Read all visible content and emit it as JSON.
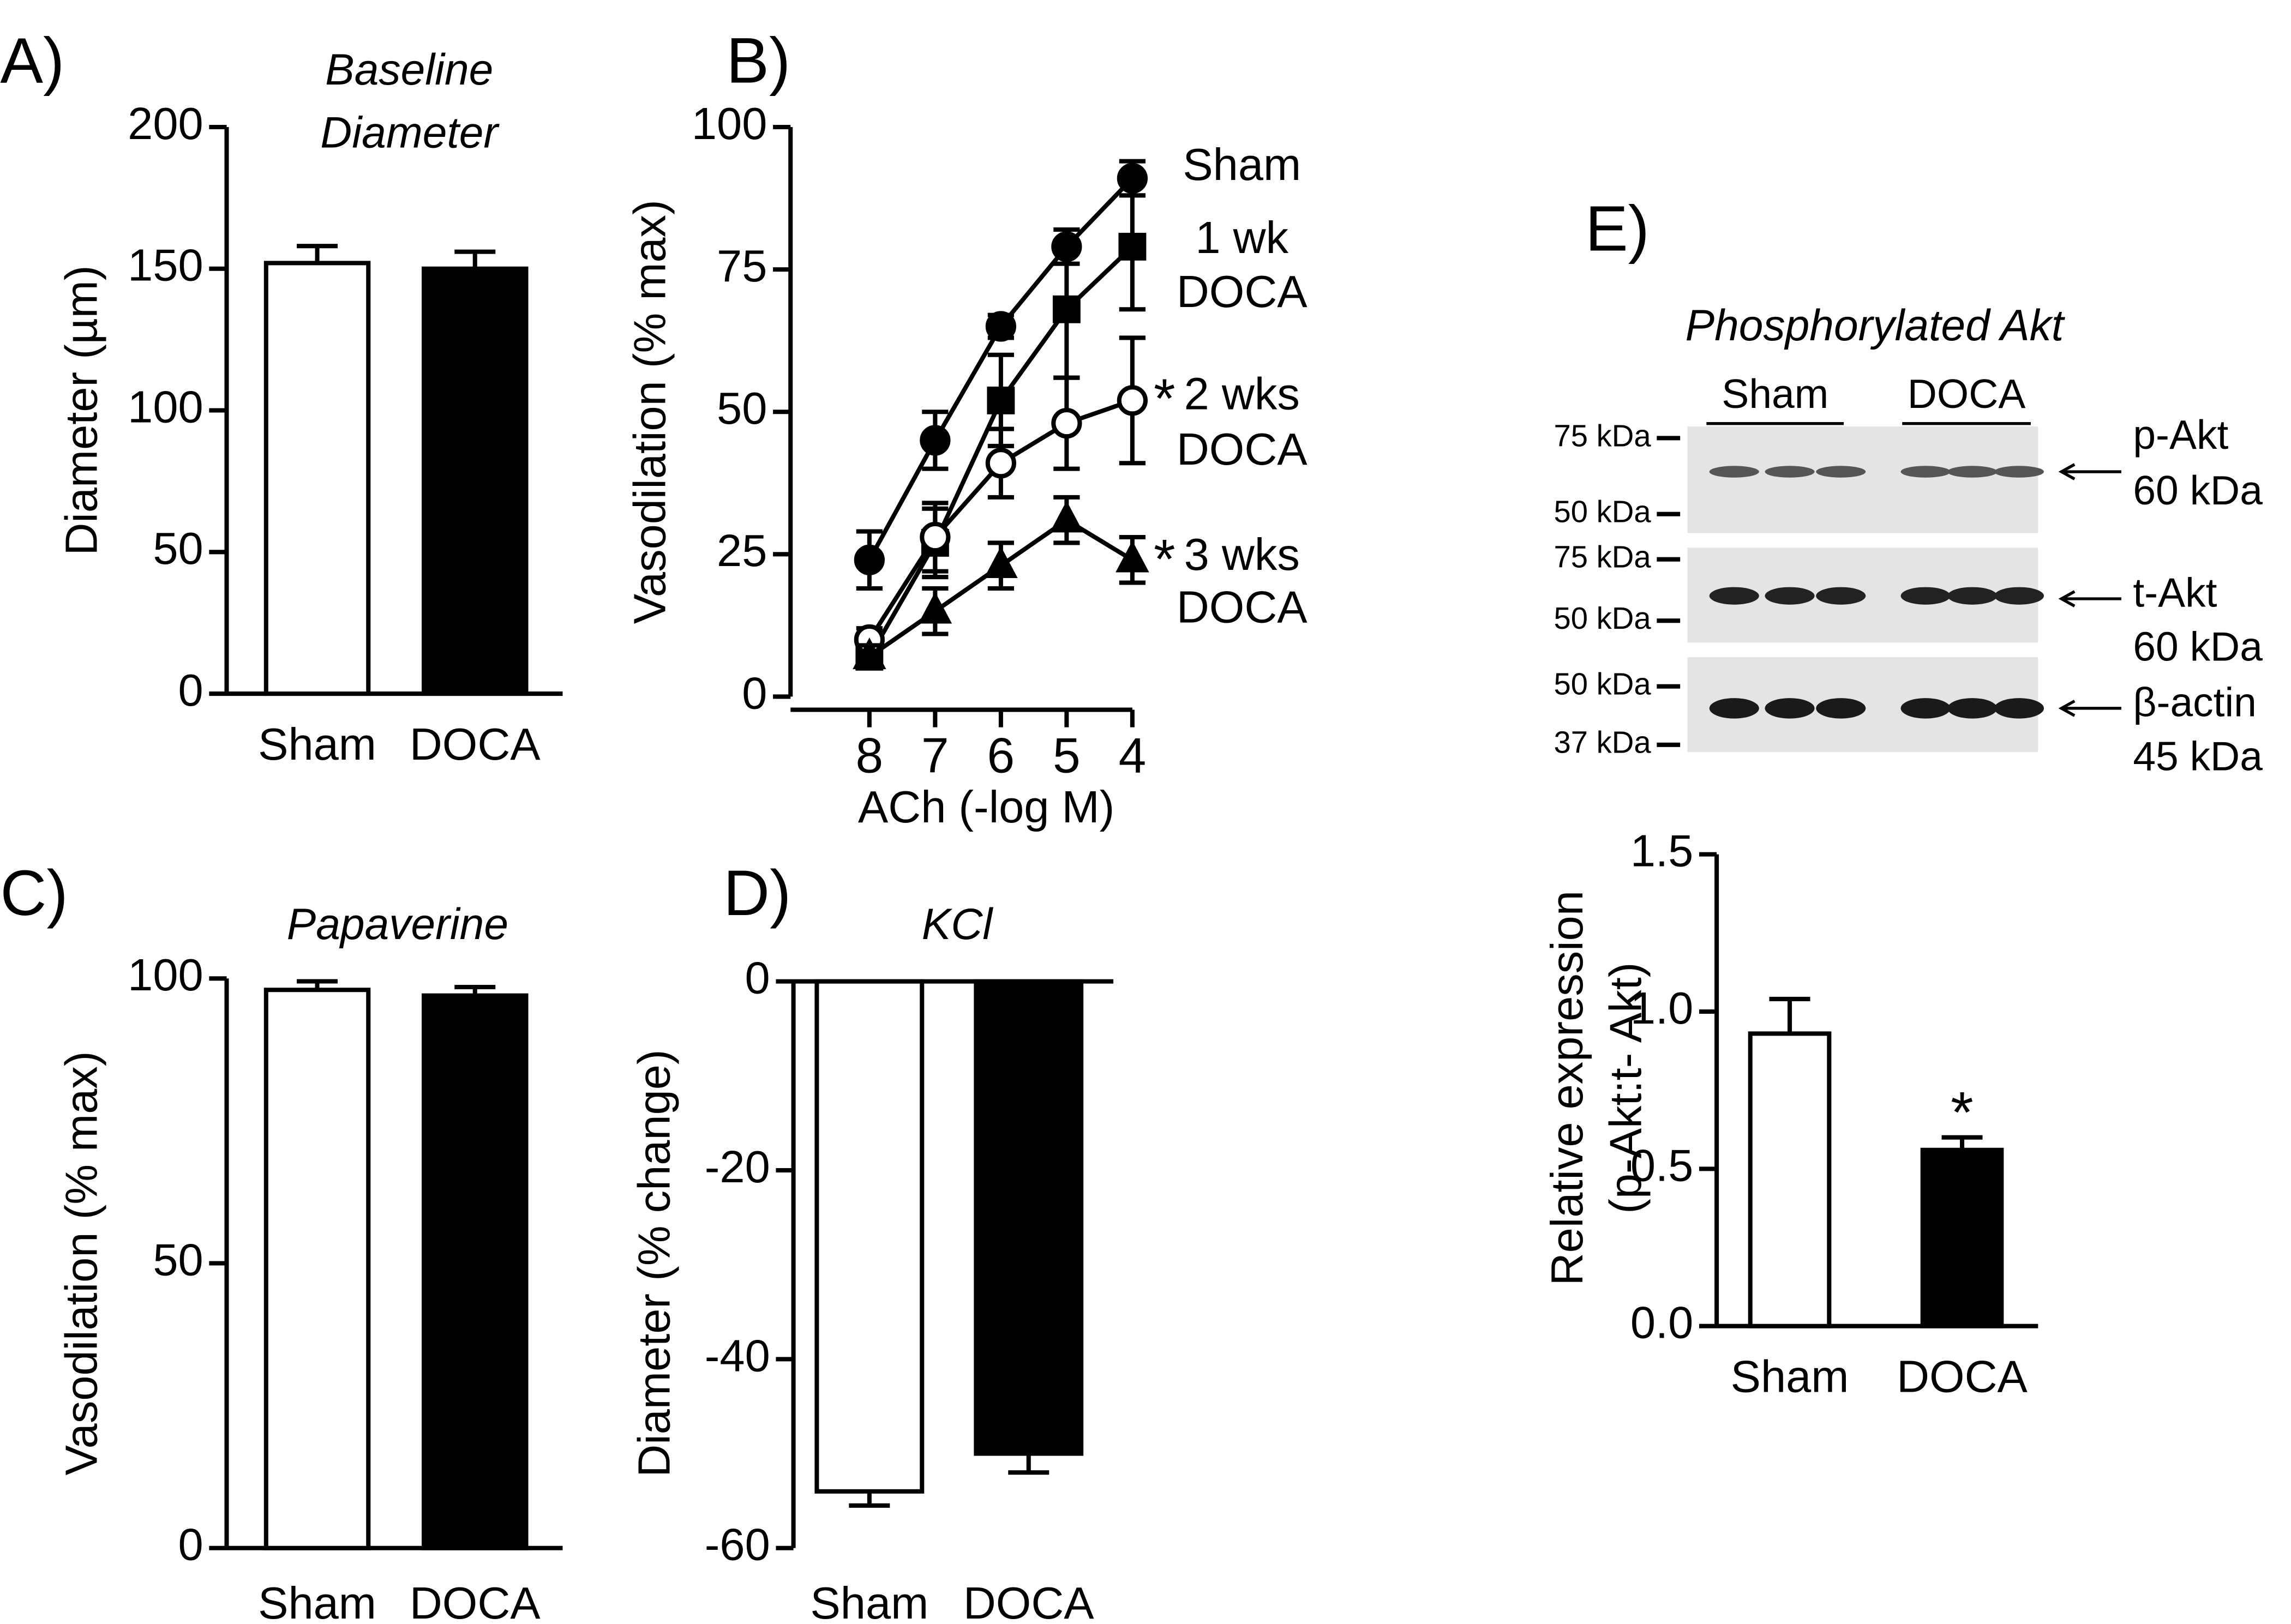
{
  "chart_data": [
    {
      "type": "bar",
      "panel": "A)",
      "title": [
        "Baseline",
        "Diameter"
      ],
      "ylabel": "Diameter (µm)",
      "categories": [
        "Sham",
        "DOCA"
      ],
      "values": [
        152,
        150
      ],
      "errors": [
        6,
        6
      ],
      "colors": [
        "#ffffff",
        "#000000"
      ],
      "ylim": [
        0,
        200
      ],
      "yticks": [
        0,
        50,
        100,
        150,
        200
      ]
    },
    {
      "type": "line",
      "panel": "B)",
      "ylabel": "Vasodilation (% max)",
      "xlabel": "ACh (-log M)",
      "x": [
        8,
        7,
        6,
        5,
        4
      ],
      "xlim": [
        9.2,
        4
      ],
      "xticks": [
        8,
        7,
        6,
        5,
        4
      ],
      "ylim": [
        0,
        100
      ],
      "yticks": [
        0,
        25,
        50,
        75,
        100
      ],
      "series": [
        {
          "name": [
            "Sham"
          ],
          "marker": "circle",
          "color": "#000000",
          "values": [
            24,
            45,
            65,
            79,
            91
          ],
          "errors": [
            5,
            5,
            2,
            3,
            3
          ]
        },
        {
          "name": [
            "1 wk",
            "DOCA"
          ],
          "marker": "square",
          "color": "#000000",
          "values": [
            7,
            27,
            52,
            68,
            79
          ],
          "errors": [
            2,
            6,
            8,
            12,
            11
          ]
        },
        {
          "name": [
            "2 wks",
            "DOCA"
          ],
          "marker": "circle",
          "color": "#ffffff",
          "values": [
            10,
            28,
            41,
            48,
            52
          ],
          "errors": [
            2,
            6,
            6,
            8,
            11
          ],
          "significance": "*"
        },
        {
          "name": [
            "3 wks",
            "DOCA"
          ],
          "marker": "triangle",
          "color": "#000000",
          "values": [
            7,
            15,
            23,
            31,
            24
          ],
          "errors": [
            2,
            4,
            4,
            4,
            4
          ],
          "significance": "*"
        }
      ]
    },
    {
      "type": "bar",
      "panel": "C)",
      "title": "Papaverine",
      "ylabel": "Vasodilation (% max)",
      "categories": [
        "Sham",
        "DOCA"
      ],
      "values": [
        98,
        97
      ],
      "errors": [
        1.5,
        1.5
      ],
      "colors": [
        "#ffffff",
        "#000000"
      ],
      "ylim": [
        0,
        100
      ],
      "yticks": [
        0,
        50,
        100
      ]
    },
    {
      "type": "bar",
      "panel": "D)",
      "title": "KCl",
      "ylabel": "Diameter (% change)",
      "categories": [
        "Sham",
        "DOCA"
      ],
      "values": [
        -54,
        -50
      ],
      "errors": [
        1.5,
        2
      ],
      "colors": [
        "#ffffff",
        "#000000"
      ],
      "ylim": [
        -60,
        0
      ],
      "yticks": [
        -60,
        -40,
        -20,
        0
      ]
    },
    {
      "type": "bar",
      "panel": "E)",
      "ylabel": [
        "Relative expression",
        "(p-Akt:t- Akt)"
      ],
      "categories": [
        "Sham",
        "DOCA"
      ],
      "values": [
        0.93,
        0.56
      ],
      "errors": [
        0.11,
        0.04
      ],
      "colors": [
        "#ffffff",
        "#000000"
      ],
      "ylim": [
        0,
        1.5
      ],
      "yticks": [
        {
          "value": 0,
          "label": "0.0"
        },
        {
          "value": 0.5,
          "label": "0.5"
        },
        {
          "value": 1,
          "label": "1.0"
        },
        {
          "value": 1.5,
          "label": "1.5"
        }
      ],
      "annotations": [
        {
          "text": "*",
          "category": "DOCA"
        }
      ]
    }
  ],
  "blot": {
    "title": "Phosphorylated Akt",
    "groups": [
      "Sham",
      "DOCA"
    ],
    "rows": [
      {
        "markers": [
          "75 kDa",
          "50 kDa"
        ],
        "target": [
          "p-Akt",
          "60 kDa"
        ]
      },
      {
        "markers": [
          "75 kDa",
          "50 kDa"
        ],
        "target": [
          "t-Akt",
          "60 kDa"
        ]
      },
      {
        "markers": [
          "50 kDa",
          "37 kDa"
        ],
        "target": [
          "β-actin",
          "45 kDa"
        ]
      }
    ]
  }
}
